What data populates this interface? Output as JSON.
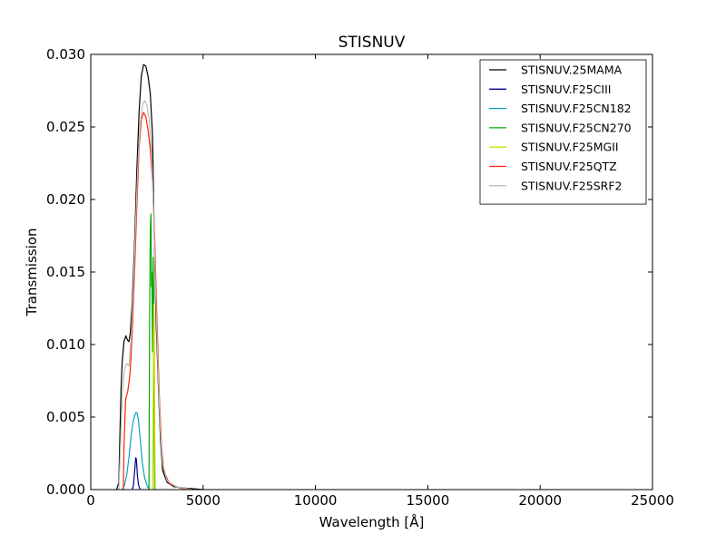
{
  "chart_data": {
    "type": "line",
    "title": "STISNUV",
    "xlabel": "Wavelength [Å]",
    "ylabel": "Transmission",
    "xlim": [
      0,
      25000
    ],
    "ylim": [
      0,
      0.03
    ],
    "x_ticks": [
      0,
      5000,
      10000,
      15000,
      20000,
      25000
    ],
    "x_tick_labels": [
      "0",
      "5000",
      "10000",
      "15000",
      "20000",
      "25000"
    ],
    "y_ticks": [
      0,
      0.005,
      0.01,
      0.015,
      0.02,
      0.025,
      0.03
    ],
    "y_tick_labels": [
      "0.000",
      "0.005",
      "0.010",
      "0.015",
      "0.020",
      "0.025",
      "0.030"
    ],
    "grid": false,
    "legend_position": "top-right",
    "series": [
      {
        "name": "STISNUV.25MAMA",
        "color": "#000000",
        "points": [
          [
            1150,
            0
          ],
          [
            1250,
            0.0005
          ],
          [
            1300,
            0.004
          ],
          [
            1350,
            0.007
          ],
          [
            1400,
            0.0088
          ],
          [
            1480,
            0.0102
          ],
          [
            1560,
            0.0106
          ],
          [
            1640,
            0.0103
          ],
          [
            1700,
            0.0102
          ],
          [
            1760,
            0.0108
          ],
          [
            1850,
            0.013
          ],
          [
            1950,
            0.017
          ],
          [
            2050,
            0.022
          ],
          [
            2150,
            0.026
          ],
          [
            2250,
            0.0285
          ],
          [
            2350,
            0.0293
          ],
          [
            2450,
            0.0292
          ],
          [
            2550,
            0.0285
          ],
          [
            2650,
            0.0273
          ],
          [
            2750,
            0.0244
          ],
          [
            2820,
            0.018
          ],
          [
            2900,
            0.012
          ],
          [
            3000,
            0.0075
          ],
          [
            3100,
            0.0035
          ],
          [
            3200,
            0.0013
          ],
          [
            3400,
            0.0005
          ],
          [
            3700,
            0.0002
          ],
          [
            4200,
            0.0001
          ],
          [
            5000,
            0
          ]
        ]
      },
      {
        "name": "STISNUV.F25CIII",
        "color": "#00008b",
        "points": [
          [
            1850,
            0
          ],
          [
            1900,
            0.0003
          ],
          [
            1950,
            0.0012
          ],
          [
            2000,
            0.0022
          ],
          [
            2030,
            0.0021
          ],
          [
            2080,
            0.0009
          ],
          [
            2130,
            0.0003
          ],
          [
            2200,
            0
          ]
        ]
      },
      {
        "name": "STISNUV.F25CN182",
        "color": "#0aa0c8",
        "points": [
          [
            1400,
            0
          ],
          [
            1500,
            0.0003
          ],
          [
            1600,
            0.001
          ],
          [
            1700,
            0.0022
          ],
          [
            1800,
            0.0038
          ],
          [
            1900,
            0.0048
          ],
          [
            2000,
            0.0053
          ],
          [
            2060,
            0.0053
          ],
          [
            2120,
            0.0048
          ],
          [
            2200,
            0.0035
          ],
          [
            2300,
            0.0018
          ],
          [
            2400,
            0.0008
          ],
          [
            2500,
            0.0003
          ],
          [
            2600,
            0
          ]
        ]
      },
      {
        "name": "STISNUV.F25CN270",
        "color": "#00aa00",
        "points": [
          [
            2590,
            0
          ],
          [
            2620,
            0.012
          ],
          [
            2650,
            0.018
          ],
          [
            2680,
            0.019
          ],
          [
            2700,
            0.014
          ],
          [
            2720,
            0.015
          ],
          [
            2750,
            0.0095
          ],
          [
            2780,
            0.016
          ],
          [
            2800,
            0.0135
          ],
          [
            2820,
            0.006
          ],
          [
            2840,
            0
          ]
        ]
      },
      {
        "name": "STISNUV.F25MGII",
        "color": "#ccdd00",
        "points": [
          [
            2750,
            0
          ],
          [
            2770,
            0.003
          ],
          [
            2790,
            0.0095
          ],
          [
            2810,
            0.0128
          ],
          [
            2830,
            0.011
          ],
          [
            2850,
            0.004
          ],
          [
            2870,
            0
          ]
        ]
      },
      {
        "name": "STISNUV.F25QTZ",
        "color": "#ff2200",
        "points": [
          [
            1450,
            0
          ],
          [
            1480,
            0.003
          ],
          [
            1550,
            0.0062
          ],
          [
            1650,
            0.0068
          ],
          [
            1750,
            0.008
          ],
          [
            1850,
            0.011
          ],
          [
            1950,
            0.015
          ],
          [
            2050,
            0.0195
          ],
          [
            2150,
            0.0235
          ],
          [
            2250,
            0.0255
          ],
          [
            2350,
            0.026
          ],
          [
            2450,
            0.0257
          ],
          [
            2550,
            0.0248
          ],
          [
            2650,
            0.0235
          ],
          [
            2750,
            0.0212
          ],
          [
            2850,
            0.017
          ],
          [
            2950,
            0.0115
          ],
          [
            3050,
            0.0065
          ],
          [
            3150,
            0.003
          ],
          [
            3250,
            0.0013
          ],
          [
            3500,
            0.0004
          ],
          [
            4000,
            0.0001
          ],
          [
            4500,
            0
          ]
        ]
      },
      {
        "name": "STISNUV.F25SRF2",
        "color": "#bbbbbb",
        "points": [
          [
            1250,
            0
          ],
          [
            1300,
            0.002
          ],
          [
            1400,
            0.0065
          ],
          [
            1500,
            0.0083
          ],
          [
            1600,
            0.0087
          ],
          [
            1700,
            0.0085
          ],
          [
            1800,
            0.0105
          ],
          [
            1900,
            0.014
          ],
          [
            2000,
            0.0185
          ],
          [
            2100,
            0.0225
          ],
          [
            2200,
            0.0252
          ],
          [
            2300,
            0.0265
          ],
          [
            2400,
            0.0268
          ],
          [
            2500,
            0.0265
          ],
          [
            2600,
            0.0255
          ],
          [
            2700,
            0.0235
          ],
          [
            2800,
            0.019
          ],
          [
            2900,
            0.013
          ],
          [
            3000,
            0.008
          ],
          [
            3100,
            0.004
          ],
          [
            3200,
            0.0018
          ],
          [
            3400,
            0.0006
          ],
          [
            3800,
            0.0002
          ],
          [
            4500,
            0
          ]
        ]
      }
    ]
  }
}
